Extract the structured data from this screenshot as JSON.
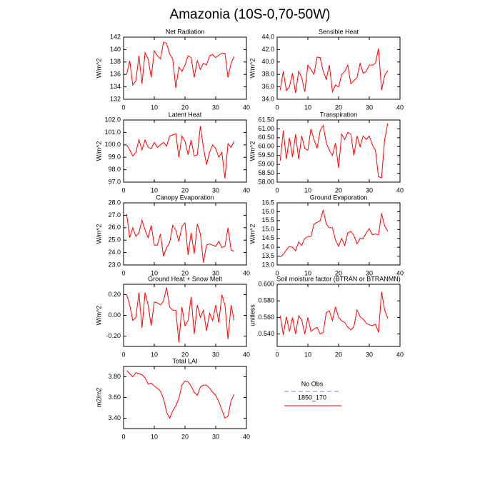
{
  "title": "Amazonia (10S-0,70-50W)",
  "obs": {
    "name": "No Obs",
    "color": "#9999dd"
  },
  "chart_data": [
    {
      "type": "line",
      "title": "Net Radiation",
      "ylabel": "W/m^2",
      "x": [
        1,
        2,
        3,
        4,
        5,
        6,
        7,
        8,
        9,
        10,
        11,
        12,
        13,
        14,
        15,
        16,
        17,
        18,
        19,
        20,
        21,
        22,
        23,
        24,
        25,
        26,
        27,
        28,
        29,
        30,
        31,
        32,
        33,
        34,
        35,
        36
      ],
      "series": [
        {
          "name": "1850_170",
          "color": "#ff0000",
          "values": [
            136,
            138.2,
            134.3,
            135,
            139,
            134.5,
            139.5,
            138.5,
            135.5,
            139.8,
            139,
            138.5,
            141.2,
            141,
            139.3,
            138.5,
            133.8,
            137.2,
            136.5,
            137.5,
            139,
            138.7,
            135.5,
            138.2,
            136.8,
            137.8,
            137.5,
            139,
            139.2,
            138.7,
            139.1,
            139.4,
            139.4,
            135.5,
            137.8,
            138.9
          ]
        }
      ],
      "xlim": [
        0,
        40
      ],
      "xticks": [
        0,
        10,
        20,
        30,
        40
      ],
      "ylim": [
        132,
        142
      ],
      "yticks": [
        132,
        134,
        136,
        138,
        140,
        142
      ]
    },
    {
      "type": "line",
      "title": "Sensible Heat",
      "ylabel": "W/m^2",
      "x": [
        1,
        2,
        3,
        4,
        5,
        6,
        7,
        8,
        9,
        10,
        11,
        12,
        13,
        14,
        15,
        16,
        17,
        18,
        19,
        20,
        21,
        22,
        23,
        24,
        25,
        26,
        27,
        28,
        29,
        30,
        31,
        32,
        33,
        34,
        35,
        36
      ],
      "series": [
        {
          "name": "1850_170",
          "color": "#ff0000",
          "values": [
            35.5,
            38.5,
            35.4,
            36,
            38.2,
            35,
            38.5,
            37.5,
            35.2,
            39.5,
            38.8,
            38,
            40.8,
            40.7,
            38.5,
            37.2,
            39.5,
            35.2,
            36.3,
            36,
            38,
            38.5,
            39.5,
            36.5,
            37,
            37.5,
            39.8,
            38.2,
            38.5,
            39.5,
            39.5,
            39.8,
            42.2,
            35.5,
            37.8,
            38.6
          ]
        }
      ],
      "xlim": [
        0,
        40
      ],
      "xticks": [
        0,
        10,
        20,
        30,
        40
      ],
      "ylim": [
        34,
        44
      ],
      "yticks": [
        {
          "value": 34,
          "label": "34.0"
        },
        {
          "value": 36,
          "label": "36.0"
        },
        {
          "value": 38,
          "label": "38.0"
        },
        {
          "value": 40,
          "label": "40.0"
        },
        {
          "value": 42,
          "label": "42.0"
        },
        {
          "value": 44,
          "label": "44.0"
        }
      ]
    },
    {
      "type": "line",
      "title": "Latent Heat",
      "ylabel": "W/m^2",
      "x": [
        1,
        2,
        3,
        4,
        5,
        6,
        7,
        8,
        9,
        10,
        11,
        12,
        13,
        14,
        15,
        16,
        17,
        18,
        19,
        20,
        21,
        22,
        23,
        24,
        25,
        26,
        27,
        28,
        29,
        30,
        31,
        32,
        33,
        34,
        35,
        36
      ],
      "series": [
        {
          "name": "1850_170",
          "color": "#ff0000",
          "values": [
            100,
            99.6,
            99.1,
            99.4,
            100.4,
            99.6,
            100.4,
            99.8,
            99.7,
            100.2,
            99.8,
            100,
            100.2,
            99.9,
            100.7,
            100.8,
            100.9,
            99,
            100.7,
            100.3,
            99.2,
            100.4,
            99.1,
            99.2,
            101.5,
            99.8,
            98.4,
            99.4,
            100,
            99.7,
            99,
            99.4,
            97.3,
            100.1,
            99.8,
            100.3
          ]
        }
      ],
      "xlim": [
        0,
        40
      ],
      "xticks": [
        0,
        10,
        20,
        30,
        40
      ],
      "ylim": [
        97,
        102
      ],
      "yticks": [
        {
          "value": 97,
          "label": "97.0"
        },
        {
          "value": 98,
          "label": "98.0"
        },
        {
          "value": 99,
          "label": "99.0"
        },
        {
          "value": 100,
          "label": "100.0"
        },
        {
          "value": 101,
          "label": "101.0"
        },
        {
          "value": 102,
          "label": "102.0"
        }
      ]
    },
    {
      "type": "line",
      "title": "Transpiration",
      "ylabel": "W/m^2",
      "x": [
        1,
        2,
        3,
        4,
        5,
        6,
        7,
        8,
        9,
        10,
        11,
        12,
        13,
        14,
        15,
        16,
        17,
        18,
        19,
        20,
        21,
        22,
        23,
        24,
        25,
        26,
        27,
        28,
        29,
        30,
        31,
        32,
        33,
        34,
        35,
        36
      ],
      "series": [
        {
          "name": "1850_170",
          "color": "#ff0000",
          "values": [
            59.2,
            60.9,
            59.3,
            60.5,
            59.4,
            60.7,
            59.3,
            60.6,
            59.9,
            59.8,
            61,
            60.4,
            59.9,
            60.9,
            61.2,
            60.2,
            59.8,
            59.5,
            60.2,
            58.8,
            60.7,
            60.4,
            60.8,
            60.7,
            59.5,
            60.6,
            60,
            60.6,
            60.4,
            60.6,
            60.1,
            59.8,
            58.3,
            58.25,
            60.4,
            61.3
          ]
        }
      ],
      "xlim": [
        0,
        40
      ],
      "xticks": [
        0,
        10,
        20,
        30,
        40
      ],
      "ylim": [
        58,
        61.5
      ],
      "yticks": [
        {
          "value": 58,
          "label": "58.00"
        },
        {
          "value": 58.5,
          "label": "58.50"
        },
        {
          "value": 59,
          "label": "59.00"
        },
        {
          "value": 59.5,
          "label": "59.50"
        },
        {
          "value": 60,
          "label": "60.00"
        },
        {
          "value": 60.5,
          "label": "60.50"
        },
        {
          "value": 61,
          "label": "61.00"
        },
        {
          "value": 61.5,
          "label": "61.50"
        }
      ]
    },
    {
      "type": "line",
      "title": "Canopy Evaporation",
      "ylabel": "W/m^2",
      "x": [
        1,
        2,
        3,
        4,
        5,
        6,
        7,
        8,
        9,
        10,
        11,
        12,
        13,
        14,
        15,
        16,
        17,
        18,
        19,
        20,
        21,
        22,
        23,
        24,
        25,
        26,
        27,
        28,
        29,
        30,
        31,
        32,
        33,
        34,
        35,
        36
      ],
      "series": [
        {
          "name": "1850_170",
          "color": "#ff0000",
          "values": [
            27.1,
            25.2,
            26,
            25.3,
            25.6,
            26.6,
            25.8,
            25.2,
            26.2,
            24.6,
            24.6,
            25.5,
            23.7,
            24.4,
            24.8,
            26.2,
            25.8,
            24.9,
            26.1,
            26.4,
            23.8,
            25.6,
            23.9,
            26.3,
            25.5,
            23.2,
            24.6,
            24.7,
            24.6,
            24.5,
            24.9,
            24.4,
            24.5,
            26,
            24.2,
            24.1
          ]
        }
      ],
      "xlim": [
        0,
        40
      ],
      "xticks": [
        0,
        10,
        20,
        30,
        40
      ],
      "ylim": [
        23,
        28
      ],
      "yticks": [
        {
          "value": 23,
          "label": "23.0"
        },
        {
          "value": 24,
          "label": "24.0"
        },
        {
          "value": 25,
          "label": "25.0"
        },
        {
          "value": 26,
          "label": "26.0"
        },
        {
          "value": 27,
          "label": "27.0"
        },
        {
          "value": 28,
          "label": "28.0"
        }
      ]
    },
    {
      "type": "line",
      "title": "Ground Evaporation",
      "ylabel": "W/m^2",
      "x": [
        1,
        2,
        3,
        4,
        5,
        6,
        7,
        8,
        9,
        10,
        11,
        12,
        13,
        14,
        15,
        16,
        17,
        18,
        19,
        20,
        21,
        22,
        23,
        24,
        25,
        26,
        27,
        28,
        29,
        30,
        31,
        32,
        33,
        34,
        35,
        36
      ],
      "series": [
        {
          "name": "1850_170",
          "color": "#ff0000",
          "values": [
            13.45,
            13.6,
            13.85,
            14.05,
            14,
            13.8,
            14.3,
            14.1,
            14.5,
            14.6,
            14.6,
            15.3,
            15.4,
            15.5,
            16.1,
            15.3,
            15.1,
            15.1,
            14.4,
            14.05,
            14.5,
            14.1,
            14.8,
            14.9,
            14.65,
            14.2,
            14.5,
            14.5,
            14.8,
            15.05,
            14.7,
            14.75,
            14.7,
            15.9,
            15.2,
            14.9
          ]
        }
      ],
      "xlim": [
        0,
        40
      ],
      "xticks": [
        0,
        10,
        20,
        30,
        40
      ],
      "ylim": [
        13,
        16.5
      ],
      "yticks": [
        {
          "value": 13,
          "label": "13.0"
        },
        13.5,
        {
          "value": 14,
          "label": "14.0"
        },
        14.5,
        {
          "value": 15,
          "label": "15.0"
        },
        15.5,
        {
          "value": 16,
          "label": "16.0"
        },
        16.5
      ]
    },
    {
      "type": "line",
      "title": "Ground Heat + Snow Melt",
      "ylabel": "W/m^2",
      "x": [
        1,
        2,
        3,
        4,
        5,
        6,
        7,
        8,
        9,
        10,
        11,
        12,
        13,
        14,
        15,
        16,
        17,
        18,
        19,
        20,
        21,
        22,
        23,
        24,
        25,
        26,
        27,
        28,
        29,
        30,
        31,
        32,
        33,
        34,
        35,
        36
      ],
      "series": [
        {
          "name": "1850_170",
          "color": "#ff0000",
          "values": [
            0.2,
            0.1,
            -0.05,
            -0.02,
            0.22,
            -0.12,
            0.22,
            0.1,
            -0.1,
            0.13,
            0.12,
            0.1,
            0.14,
            0.27,
            0.08,
            0.05,
            0.05,
            -0.26,
            0.08,
            -0.1,
            -0.05,
            0.18,
            -0.18,
            0.1,
            -0.02,
            0.05,
            -0.15,
            0.02,
            -0.05,
            0.1,
            -0.07,
            0.2,
            0.1,
            -0.23,
            0.1,
            -0.05
          ]
        }
      ],
      "xlim": [
        0,
        40
      ],
      "xticks": [
        0,
        10,
        20,
        30,
        40
      ],
      "ylim": [
        -0.3,
        0.3
      ],
      "yticks": [
        {
          "value": -0.2,
          "label": "-0.20"
        },
        {
          "value": 0,
          "label": "0.00"
        },
        {
          "value": 0.2,
          "label": "0.20"
        }
      ]
    },
    {
      "type": "line",
      "title": "Soil moisture factor (BTRAN or BTRANMN)",
      "ylabel": "unitless",
      "x": [
        1,
        2,
        3,
        4,
        5,
        6,
        7,
        8,
        9,
        10,
        11,
        12,
        13,
        14,
        15,
        16,
        17,
        18,
        19,
        20,
        21,
        22,
        23,
        24,
        25,
        26,
        27,
        28,
        29,
        30,
        31,
        32,
        33,
        34,
        35,
        36
      ],
      "series": [
        {
          "name": "1850_170",
          "color": "#ff0000",
          "values": [
            0.562,
            0.539,
            0.561,
            0.543,
            0.56,
            0.54,
            0.562,
            0.557,
            0.54,
            0.56,
            0.543,
            0.546,
            0.548,
            0.54,
            0.542,
            0.566,
            0.568,
            0.556,
            0.573,
            0.56,
            0.556,
            0.554,
            0.548,
            0.545,
            0.549,
            0.569,
            0.561,
            0.558,
            0.553,
            0.551,
            0.55,
            0.552,
            0.542,
            0.591,
            0.569,
            0.559
          ]
        }
      ],
      "xlim": [
        0,
        40
      ],
      "xticks": [
        0,
        10,
        20,
        30,
        40
      ],
      "ylim": [
        0.525,
        0.6
      ],
      "yticks": [
        {
          "value": 0.54,
          "label": "0.540"
        },
        {
          "value": 0.56,
          "label": "0.560"
        },
        {
          "value": 0.58,
          "label": "0.580"
        },
        {
          "value": 0.6,
          "label": "0.600"
        }
      ]
    },
    {
      "type": "line",
      "title": "Total LAI",
      "ylabel": "m2/m2",
      "x": [
        1,
        2,
        3,
        4,
        5,
        6,
        7,
        8,
        9,
        10,
        11,
        12,
        13,
        14,
        15,
        16,
        17,
        18,
        19,
        20,
        21,
        22,
        23,
        24,
        25,
        26,
        27,
        28,
        29,
        30,
        31,
        32,
        33,
        34,
        35,
        36
      ],
      "series": [
        {
          "name": "1850_170",
          "color": "#ff0000",
          "values": [
            3.86,
            3.83,
            3.8,
            3.84,
            3.83,
            3.82,
            3.79,
            3.73,
            3.74,
            3.71,
            3.69,
            3.66,
            3.59,
            3.46,
            3.4,
            3.47,
            3.52,
            3.59,
            3.72,
            3.76,
            3.75,
            3.71,
            3.65,
            3.62,
            3.7,
            3.72,
            3.72,
            3.69,
            3.65,
            3.62,
            3.56,
            3.48,
            3.4,
            3.42,
            3.57,
            3.63
          ]
        }
      ],
      "xlim": [
        0,
        40
      ],
      "xticks": [
        0,
        10,
        20,
        30,
        40
      ],
      "ylim": [
        3.3,
        3.9
      ],
      "yticks": [
        {
          "value": 3.4,
          "label": "3.40"
        },
        {
          "value": 3.6,
          "label": "3.60"
        },
        {
          "value": 3.8,
          "label": "3.80"
        }
      ]
    }
  ]
}
